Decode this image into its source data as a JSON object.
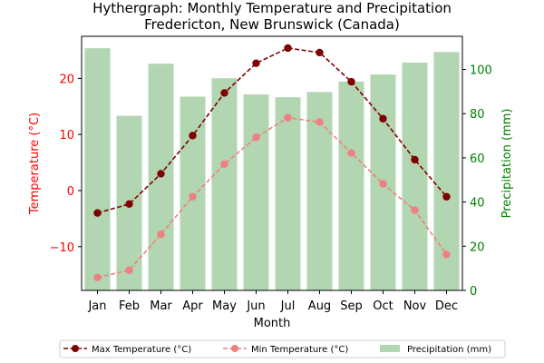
{
  "chart_data": {
    "type": "bar+line",
    "title": "Hythergraph: Monthly Temperature and Precipitation\nFredericton, New Brunswick (Canada)",
    "xlabel": "Month",
    "ylabel_left": "Temperature (°C)",
    "ylabel_right": "Precipitation (mm)",
    "categories": [
      "Jan",
      "Feb",
      "Mar",
      "Apr",
      "May",
      "Jun",
      "Jul",
      "Aug",
      "Sep",
      "Oct",
      "Nov",
      "Dec"
    ],
    "ylim_left": [
      -17.8,
      27.5
    ],
    "ylim_right": [
      0,
      115
    ],
    "yticks_left": [
      -10,
      0,
      10,
      20
    ],
    "yticks_right": [
      0,
      20,
      40,
      60,
      80,
      100
    ],
    "series": [
      {
        "name": "Max Temperature (°C)",
        "axis": "left",
        "kind": "line",
        "style": "dashed",
        "color": "#800000",
        "values": [
          -4.0,
          -2.4,
          3.0,
          9.8,
          17.4,
          22.7,
          25.4,
          24.6,
          19.4,
          12.8,
          5.5,
          -1.1
        ]
      },
      {
        "name": "Min Temperature (°C)",
        "axis": "left",
        "kind": "line",
        "style": "dashed",
        "color": "#f08080",
        "values": [
          -15.5,
          -14.2,
          -7.8,
          -1.1,
          4.7,
          9.5,
          13.0,
          12.2,
          6.7,
          1.2,
          -3.5,
          -11.4
        ]
      },
      {
        "name": "Precipitation (mm)",
        "axis": "right",
        "kind": "bar",
        "color": "#b1d6b1",
        "values": [
          109.6,
          79.0,
          102.6,
          87.7,
          96.0,
          88.7,
          87.4,
          89.8,
          94.5,
          97.7,
          103.1,
          107.9
        ]
      }
    ],
    "legend_position": "bottom-center",
    "colors": {
      "left_axis": "#ff0000",
      "right_axis": "#008000"
    }
  }
}
